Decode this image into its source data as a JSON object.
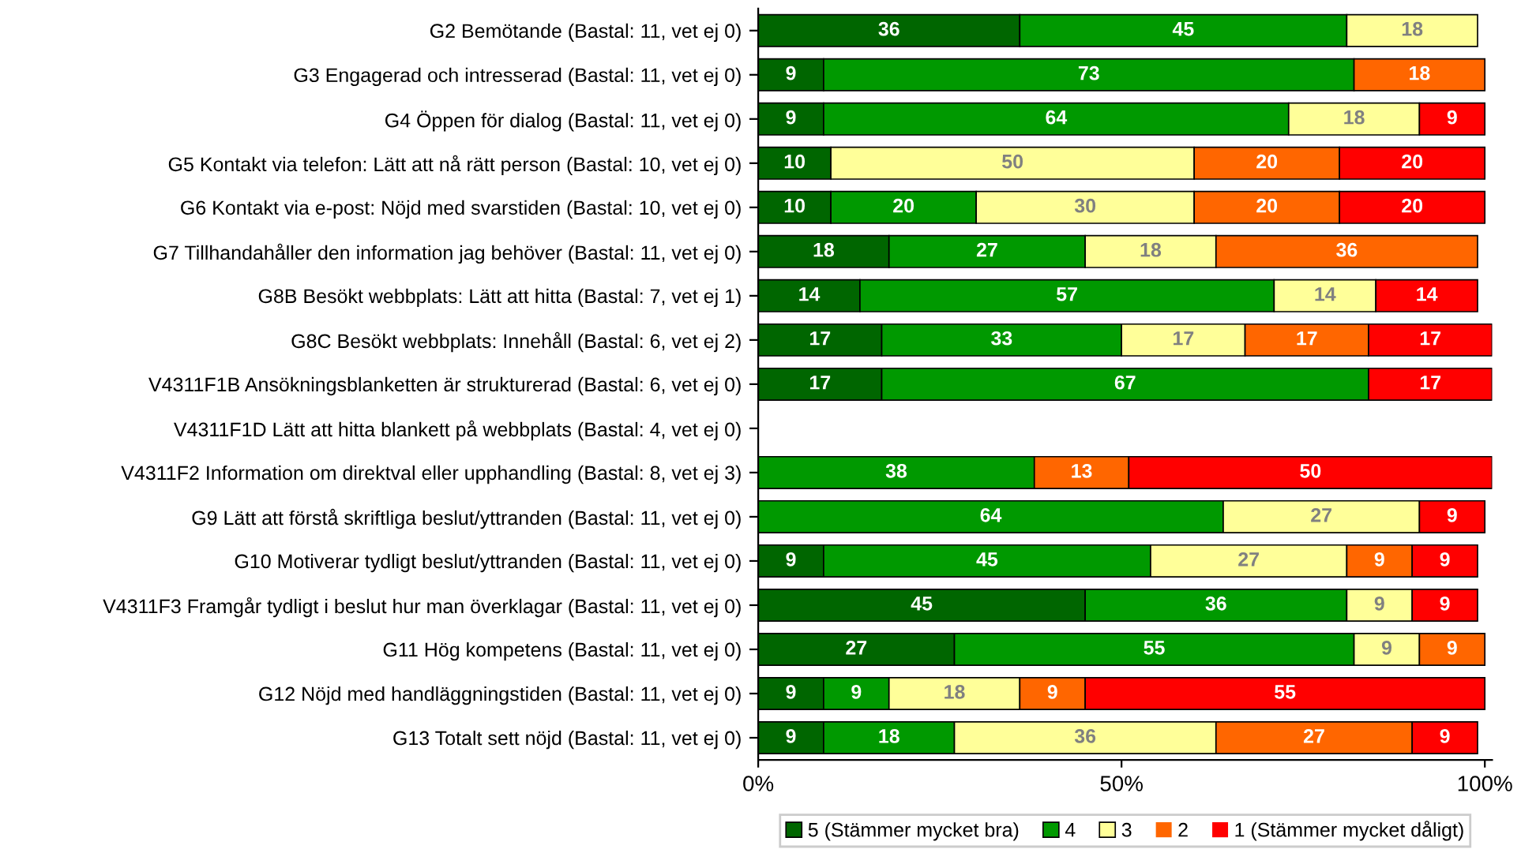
{
  "chart_data": {
    "type": "bar",
    "orientation": "horizontal",
    "stacked": true,
    "categories": [
      "G2 Bemötande (Bastal: 11, vet ej 0)",
      "G3 Engagerad och intresserad (Bastal: 11, vet ej 0)",
      "G4 Öppen för dialog (Bastal: 11, vet ej 0)",
      "G5 Kontakt via telefon: Lätt att nå rätt person (Bastal: 10, vet ej 0)",
      "G6 Kontakt via e-post: Nöjd med svarstiden (Bastal: 10, vet ej 0)",
      "G7 Tillhandahåller den information jag behöver (Bastal: 11, vet ej 0)",
      "G8B Besökt webbplats: Lätt att hitta (Bastal: 7, vet ej 1)",
      "G8C Besökt webbplats: Innehåll (Bastal: 6, vet ej 2)",
      "V4311F1B Ansökningsblanketten är strukturerad (Bastal: 6, vet ej 0)",
      "V4311F1D Lätt att hitta blankett på webbplats (Bastal: 4, vet ej 0)",
      "V4311F2 Information om direktval eller upphandling (Bastal: 8, vet ej 3)",
      "G9 Lätt att förstå skriftliga beslut/yttranden (Bastal: 11, vet ej 0)",
      "G10 Motiverar tydligt beslut/yttranden (Bastal: 11, vet ej 0)",
      "V4311F3 Framgår tydligt i beslut hur man överklagar (Bastal: 11, vet ej 0)",
      "G11 Hög kompetens (Bastal: 11, vet ej 0)",
      "G12 Nöjd med handläggningstiden (Bastal: 11, vet ej 0)",
      "G13 Totalt sett nöjd (Bastal: 11, vet ej 0)"
    ],
    "series": [
      {
        "name": "5 (Stämmer mycket bra)",
        "color": "#006600",
        "values": [
          36,
          9,
          9,
          10,
          10,
          18,
          14,
          17,
          17,
          0,
          0,
          0,
          9,
          45,
          27,
          9,
          9
        ],
        "value_labels": [
          "36",
          "9",
          "9",
          "10",
          "10",
          "18",
          "14",
          "17",
          "17",
          null,
          null,
          null,
          "9",
          "45",
          "27",
          "9",
          "9"
        ]
      },
      {
        "name": "4",
        "color": "#009900",
        "values": [
          45,
          73,
          64,
          0,
          20,
          27,
          57,
          33,
          67,
          0,
          38,
          64,
          45,
          36,
          55,
          9,
          18
        ],
        "value_labels": [
          "45",
          "73",
          "64",
          null,
          "20",
          "27",
          "57",
          "33",
          "67",
          null,
          "38",
          "64",
          "45",
          "36",
          "55",
          "9",
          "18"
        ]
      },
      {
        "name": "3",
        "color": "#ffff99",
        "values": [
          18,
          0,
          18,
          50,
          30,
          18,
          14,
          17,
          0,
          0,
          0,
          27,
          27,
          9,
          9,
          18,
          36
        ],
        "value_labels": [
          "18",
          null,
          "18",
          "50",
          "30",
          "18",
          "14",
          "17",
          null,
          null,
          null,
          "27",
          "27",
          "9",
          "9",
          "18",
          "36"
        ]
      },
      {
        "name": "2",
        "color": "#ff6600",
        "values": [
          0,
          18,
          0,
          20,
          20,
          36,
          0,
          17,
          0,
          0,
          13,
          0,
          9,
          0,
          9,
          9,
          27
        ],
        "value_labels": [
          null,
          "18",
          null,
          "20",
          "20",
          "36",
          null,
          "17",
          null,
          null,
          "13",
          null,
          "9",
          null,
          "9",
          "9",
          "27"
        ]
      },
      {
        "name": "1 (Stämmer mycket dåligt)",
        "color": "#ff0000",
        "values": [
          0,
          0,
          9,
          20,
          20,
          0,
          14,
          17,
          17,
          0,
          50,
          9,
          9,
          9,
          0,
          55,
          9
        ],
        "value_labels": [
          null,
          null,
          "9",
          "20",
          "20",
          null,
          "14",
          "17",
          "17",
          null,
          "50",
          "9",
          "9",
          "9",
          null,
          "55",
          "9"
        ]
      }
    ],
    "xlim": [
      0,
      101
    ],
    "xticks": [
      {
        "value": 0,
        "label": "0%"
      },
      {
        "value": 50,
        "label": "50%"
      },
      {
        "value": 100,
        "label": "100%"
      }
    ],
    "grid": false,
    "legend": "bottom"
  }
}
